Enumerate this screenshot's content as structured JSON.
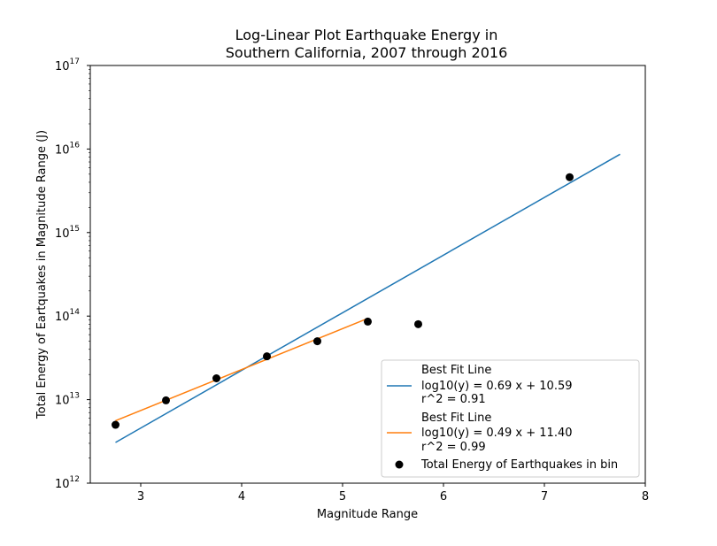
{
  "chart_data": {
    "type": "scatter",
    "title_line1": "Log-Linear Plot Earthquake Energy in",
    "title_line2": "Southern California, 2007 through 2016",
    "xlabel": "Magnitude Range",
    "ylabel": "Total Energy of Eartquakes in Magnitude Range (J)",
    "xlim": [
      2.5,
      8
    ],
    "ylim": [
      1000000000000.0,
      1e+17
    ],
    "yscale": "log",
    "grid": false,
    "legend_placement": "lower-right",
    "x_ticks": [
      {
        "value": 3,
        "label": "3"
      },
      {
        "value": 4,
        "label": "4"
      },
      {
        "value": 5,
        "label": "5"
      },
      {
        "value": 6,
        "label": "6"
      },
      {
        "value": 7,
        "label": "7"
      },
      {
        "value": 8,
        "label": "8"
      }
    ],
    "y_ticks": [
      {
        "exp": 12,
        "base": "10",
        "sup": "12"
      },
      {
        "exp": 13,
        "base": "10",
        "sup": "13"
      },
      {
        "exp": 14,
        "base": "10",
        "sup": "14"
      },
      {
        "exp": 15,
        "base": "10",
        "sup": "15"
      },
      {
        "exp": 16,
        "base": "10",
        "sup": "16"
      },
      {
        "exp": 17,
        "base": "10",
        "sup": "17"
      }
    ],
    "series": [
      {
        "kind": "line",
        "name_lines": [
          "Best Fit Line",
          "log10(y) = 0.69 x + 10.59",
          "r^2 = 0.91"
        ],
        "color": "#1f77b4",
        "slope": 0.69,
        "intercept": 10.59,
        "x_range": [
          2.75,
          7.75
        ]
      },
      {
        "kind": "line",
        "name_lines": [
          "Best Fit Line",
          "log10(y) = 0.49 x + 11.40",
          "r^2 = 0.99"
        ],
        "color": "#ff7f0e",
        "slope": 0.49,
        "intercept": 11.4,
        "x_range": [
          2.75,
          5.25
        ]
      },
      {
        "kind": "scatter",
        "name_lines": [
          "Total Energy of Earthquakes in bin"
        ],
        "color": "#000000",
        "x": [
          2.75,
          3.25,
          3.75,
          4.25,
          4.75,
          5.25,
          5.75,
          7.25
        ],
        "y": [
          5000000000000.0,
          9800000000000.0,
          18000000000000.0,
          33000000000000.0,
          50000000000000.0,
          86000000000000.0,
          80000000000000.0,
          4600000000000000.0
        ]
      }
    ]
  }
}
